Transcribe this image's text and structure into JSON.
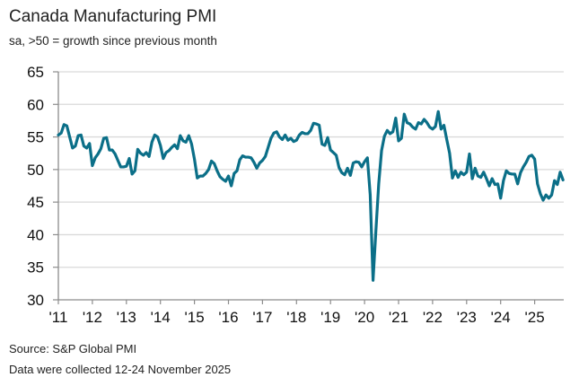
{
  "header": {
    "title": "Canada Manufacturing PMI",
    "subtitle": "sa, >50 = growth since previous month"
  },
  "footer": {
    "source": "Source: S&P Global PMI",
    "note": "Data were collected 12-24 November 2025"
  },
  "colors": {
    "line": "#0b6f88",
    "grid": "#d9d9d9",
    "axis": "#8c8c8c"
  },
  "chart_data": {
    "type": "line",
    "title": "Canada Manufacturing PMI",
    "subtitle": "sa, >50 = growth since previous month",
    "xlabel": "",
    "ylabel": "",
    "ylim": [
      30,
      65
    ],
    "yticks": [
      30,
      35,
      40,
      45,
      50,
      55,
      60,
      65
    ],
    "xlim": [
      "2011-01",
      "2025-11"
    ],
    "xtick_labels": [
      "'11",
      "'12",
      "'13",
      "'14",
      "'15",
      "'16",
      "'17",
      "'18",
      "'19",
      "'20",
      "'21",
      "'22",
      "'23",
      "'24",
      "'25"
    ],
    "grid": "horizontal",
    "legend": "none",
    "frequency": "monthly",
    "start": "2011-01",
    "series": [
      {
        "name": "Canada Manufacturing PMI",
        "values": [
          55.3,
          55.6,
          56.9,
          56.7,
          55.0,
          53.3,
          53.6,
          55.2,
          55.3,
          53.6,
          53.3,
          54.0,
          50.6,
          51.8,
          52.4,
          53.2,
          54.8,
          54.9,
          53.0,
          53.0,
          52.4,
          51.4,
          50.4,
          50.4,
          50.5,
          51.7,
          49.3,
          49.8,
          53.1,
          52.5,
          52.2,
          52.6,
          52.0,
          54.2,
          55.3,
          55.0,
          53.7,
          51.7,
          52.6,
          52.9,
          53.4,
          53.8,
          53.2,
          55.2,
          54.4,
          54.2,
          55.2,
          53.9,
          51.6,
          48.7,
          49.0,
          49.0,
          49.4,
          50.0,
          51.3,
          50.9,
          49.8,
          48.9,
          48.5,
          48.2,
          49.0,
          47.5,
          49.4,
          49.8,
          51.5,
          52.1,
          51.9,
          51.9,
          51.8,
          51.1,
          50.2,
          51.0,
          51.4,
          52.0,
          53.4,
          54.8,
          55.6,
          55.8,
          55.0,
          54.6,
          55.3,
          54.5,
          54.8,
          54.3,
          54.5,
          55.3,
          55.7,
          55.5,
          55.5,
          56.0,
          57.1,
          57.0,
          56.8,
          53.9,
          53.7,
          54.9,
          53.0,
          52.6,
          52.2,
          50.3,
          49.5,
          49.2,
          50.2,
          49.1,
          51.0,
          51.2,
          51.1,
          50.4,
          51.2,
          51.8,
          46.1,
          33.0,
          40.6,
          47.8,
          52.9,
          55.1,
          56.0,
          55.5,
          55.8,
          57.9,
          54.4,
          54.8,
          58.5,
          57.2,
          57.0,
          56.5,
          56.2,
          57.2,
          57.0,
          57.7,
          57.2,
          56.5,
          56.2,
          56.6,
          58.9,
          56.2,
          56.8,
          54.6,
          52.5,
          48.7,
          49.8,
          48.8,
          49.6,
          49.2,
          49.6,
          52.4,
          48.6,
          50.2,
          49.0,
          48.8,
          49.6,
          48.6,
          47.5,
          48.6,
          47.7,
          47.8,
          45.6,
          48.3,
          49.8,
          49.4,
          49.3,
          49.3,
          47.8,
          49.5,
          50.4,
          51.1,
          52.0,
          52.2,
          51.6,
          47.8,
          46.3,
          45.3,
          46.1,
          45.6,
          46.1,
          48.3,
          47.7,
          49.6,
          48.4
        ]
      }
    ]
  }
}
